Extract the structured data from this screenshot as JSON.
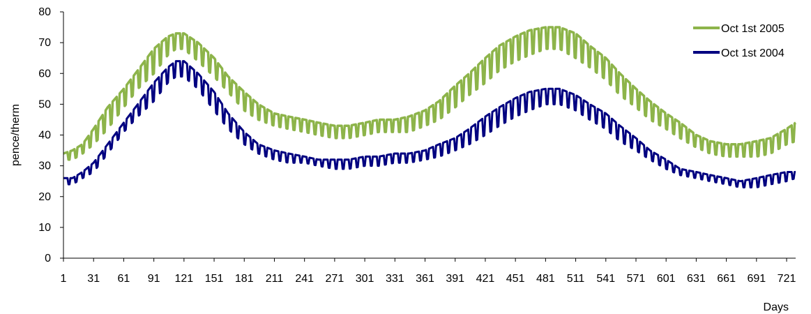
{
  "chart_data": {
    "type": "line",
    "title": "",
    "xlabel": "Days",
    "ylabel": "pence/therm",
    "xlim": [
      1,
      730
    ],
    "ylim": [
      0,
      80
    ],
    "y_ticks": [
      0,
      10,
      20,
      30,
      40,
      50,
      60,
      70,
      80
    ],
    "x_tick_labels": [
      "1",
      "31",
      "61",
      "91",
      "121",
      "151",
      "181",
      "211",
      "241",
      "271",
      "301",
      "331",
      "361",
      "391",
      "421",
      "451",
      "481",
      "511",
      "541",
      "571",
      "601",
      "631",
      "661",
      "691",
      "721"
    ],
    "grid": false,
    "legend_position": "top-right",
    "series": [
      {
        "name": "Oct 1st 2005",
        "color": "#8DB44A",
        "weekly_oscillation": true,
        "x": [
          1,
          10,
          20,
          31,
          45,
          61,
          75,
          91,
          105,
          113,
          121,
          135,
          151,
          165,
          181,
          195,
          211,
          225,
          241,
          255,
          271,
          285,
          301,
          315,
          331,
          345,
          361,
          375,
          391,
          405,
          421,
          435,
          451,
          465,
          481,
          488,
          495,
          511,
          525,
          541,
          555,
          571,
          585,
          601,
          615,
          631,
          645,
          661,
          675,
          691,
          705,
          721,
          730
        ],
        "low": [
          32,
          32,
          34,
          37,
          42,
          49,
          55,
          60,
          66,
          68,
          68,
          64,
          59,
          54,
          48,
          45,
          43,
          42,
          41,
          40,
          39,
          39,
          40,
          41,
          41,
          41,
          43,
          45,
          49,
          53,
          57,
          61,
          64,
          66,
          68,
          68,
          68,
          65,
          62,
          58,
          53,
          49,
          45,
          42,
          39,
          36,
          34,
          33,
          33,
          33,
          34,
          37,
          38
        ],
        "high": [
          34,
          35,
          37,
          42,
          49,
          55,
          61,
          68,
          72,
          73,
          73,
          70,
          65,
          59,
          54,
          50,
          47,
          46,
          45,
          44,
          43,
          43,
          44,
          45,
          45,
          46,
          48,
          51,
          56,
          60,
          65,
          69,
          72,
          74,
          75,
          75,
          75,
          73,
          69,
          65,
          60,
          55,
          51,
          47,
          44,
          40,
          38,
          37,
          37,
          38,
          39,
          42,
          44
        ]
      },
      {
        "name": "Oct 1st 2004",
        "color": "#000080",
        "weekly_oscillation": true,
        "x": [
          1,
          10,
          20,
          31,
          45,
          61,
          75,
          91,
          105,
          113,
          121,
          135,
          151,
          165,
          181,
          195,
          211,
          225,
          241,
          255,
          271,
          285,
          301,
          315,
          331,
          345,
          361,
          375,
          391,
          405,
          421,
          435,
          451,
          465,
          481,
          488,
          495,
          511,
          525,
          541,
          555,
          571,
          585,
          601,
          615,
          631,
          645,
          661,
          675,
          691,
          705,
          721,
          730
        ],
        "low": [
          24,
          24,
          26,
          28,
          34,
          41,
          46,
          51,
          57,
          59,
          59,
          55,
          48,
          42,
          37,
          34,
          32,
          31,
          31,
          30,
          29,
          29,
          30,
          30,
          31,
          31,
          32,
          33,
          35,
          37,
          40,
          43,
          46,
          48,
          50,
          50,
          50,
          48,
          45,
          42,
          38,
          35,
          32,
          29,
          27,
          26,
          25,
          24,
          23,
          23,
          24,
          25,
          26
        ],
        "high": [
          26,
          26,
          28,
          31,
          37,
          44,
          50,
          57,
          62,
          64,
          64,
          60,
          54,
          47,
          41,
          37,
          35,
          34,
          33,
          32,
          32,
          32,
          33,
          33,
          34,
          34,
          35,
          37,
          39,
          42,
          46,
          49,
          52,
          54,
          55,
          55,
          55,
          53,
          50,
          47,
          43,
          39,
          35,
          32,
          29,
          28,
          27,
          26,
          25,
          26,
          27,
          28,
          28
        ]
      }
    ]
  }
}
